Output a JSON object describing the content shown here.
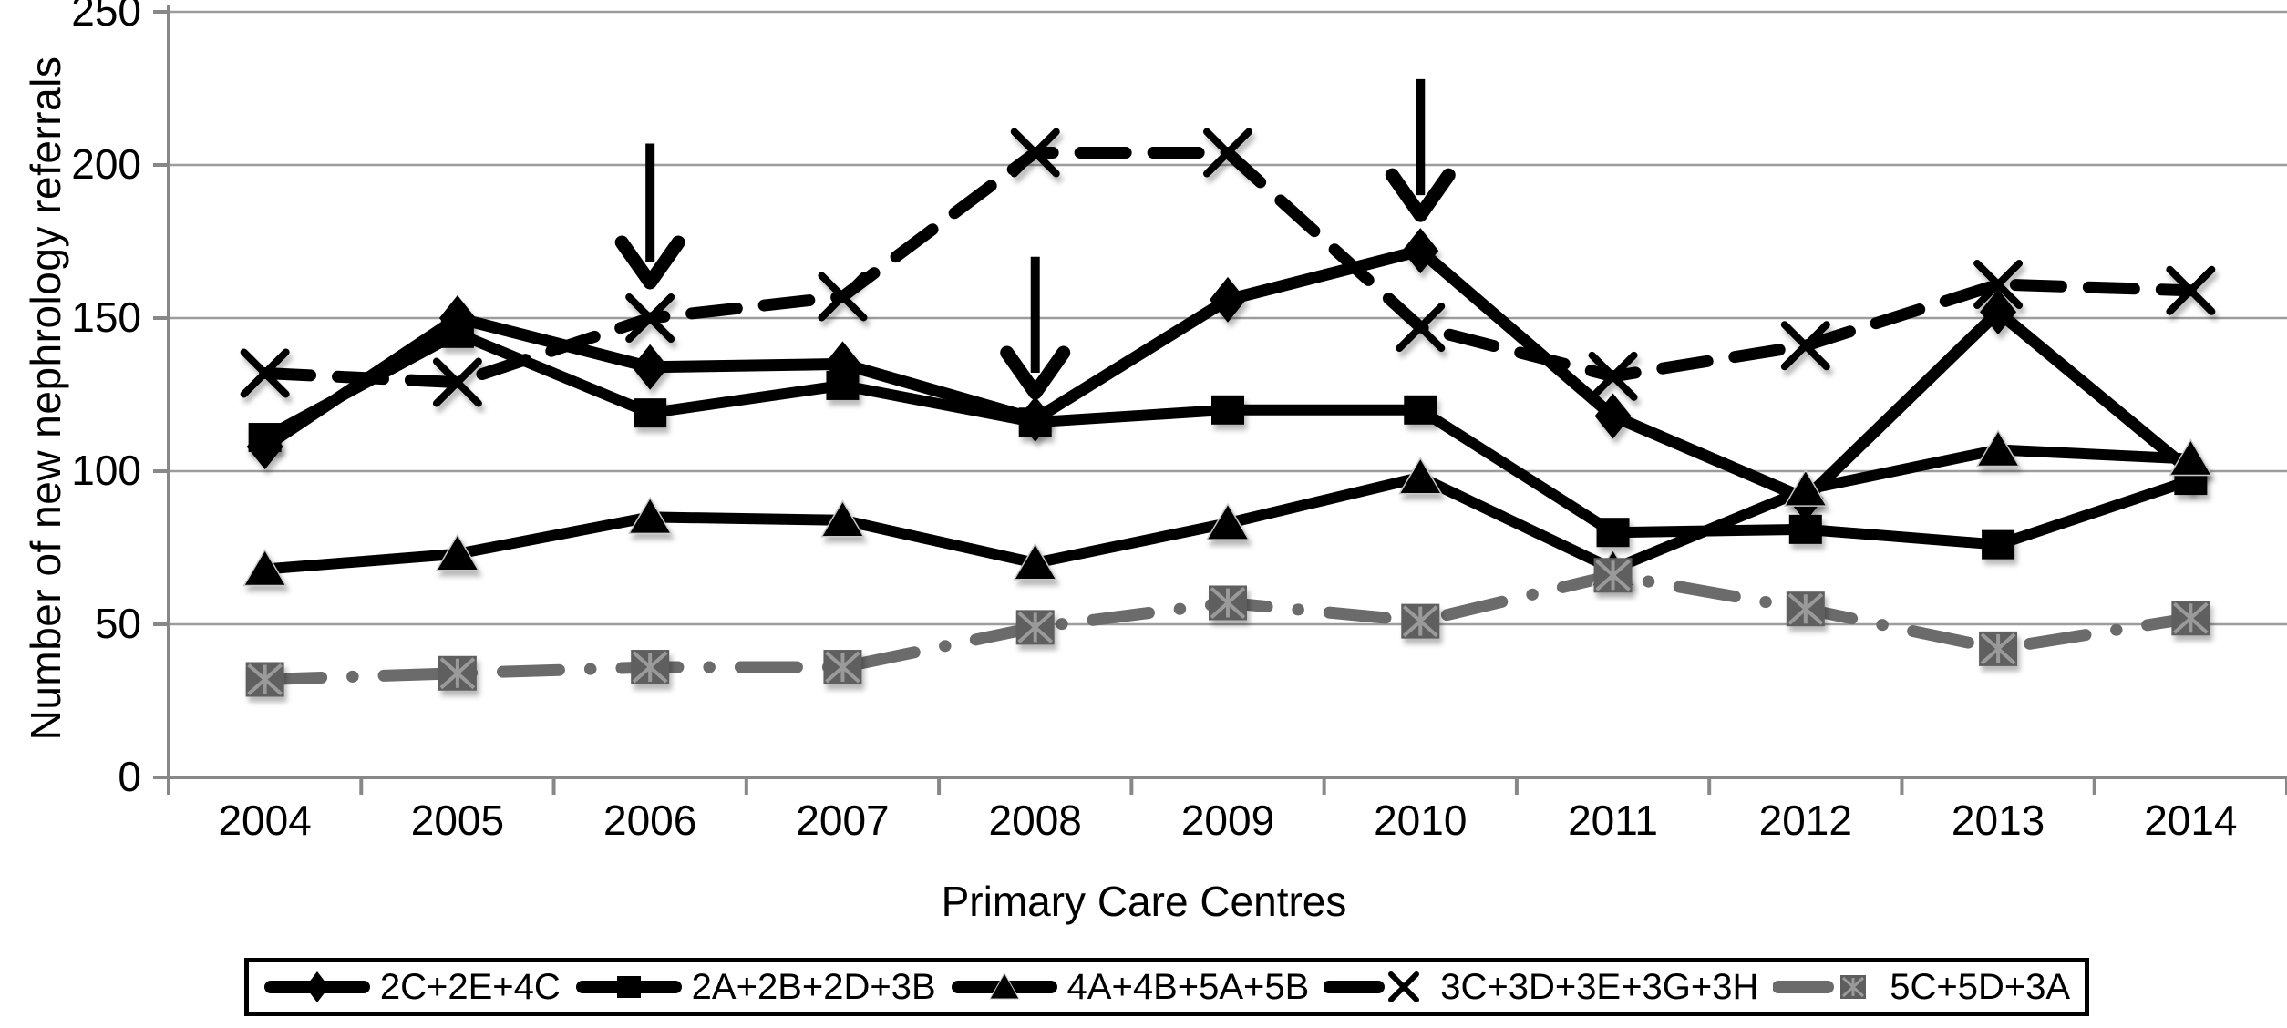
{
  "chart_data": {
    "type": "line",
    "title": "",
    "xlabel": "Primary Care Centres",
    "ylabel": "Number of new nephrology referrals",
    "categories": [
      "2004",
      "2005",
      "2006",
      "2007",
      "2008",
      "2009",
      "2010",
      "2011",
      "2012",
      "2013",
      "2014"
    ],
    "ylim": [
      0,
      250
    ],
    "y_ticks": [
      0,
      50,
      100,
      150,
      200,
      250
    ],
    "grid": true,
    "legend_position": "bottom",
    "series": [
      {
        "name": "2C+2E+4C",
        "marker": "diamond",
        "line": "solid",
        "color": "#000000",
        "values": [
          108,
          150,
          134,
          135,
          117,
          156,
          172,
          118,
          91,
          152,
          100
        ]
      },
      {
        "name": "2A+2B+2D+3B",
        "marker": "square",
        "line": "solid",
        "color": "#000000",
        "values": [
          111,
          145,
          119,
          128,
          116,
          120,
          120,
          80,
          81,
          76,
          97
        ]
      },
      {
        "name": "4A+4B+5A+5B",
        "marker": "triangle",
        "line": "solid",
        "color": "#000000",
        "values": [
          68,
          73,
          85,
          84,
          70,
          83,
          98,
          68,
          94,
          107,
          104
        ]
      },
      {
        "name": "3C+3D+3E+3G+3H",
        "marker": "x",
        "line": "dashed",
        "color": "#000000",
        "values": [
          132,
          129,
          150,
          157,
          204,
          204,
          147,
          131,
          141,
          161,
          159
        ]
      },
      {
        "name": "5C+5D+3A",
        "marker": "boxed-x",
        "line": "dash-dot",
        "color": "#6b6b6b",
        "values": [
          32,
          34,
          36,
          36,
          49,
          57,
          51,
          66,
          55,
          42,
          52
        ]
      }
    ],
    "annotations": {
      "arrows": [
        {
          "category": "2006",
          "from_value": 207,
          "to_value": 161
        },
        {
          "category": "2008",
          "from_value": 170,
          "to_value": 125
        },
        {
          "category": "2010",
          "from_value": 228,
          "to_value": 183
        }
      ]
    },
    "colors": {
      "grid": "#9c9c9c",
      "axis": "#888888",
      "black_series": "#000000",
      "gray_series": "#6b6b6b",
      "gray_marker_fill": "#5e5e5e",
      "gray_marker_lines": "#9a9a9a"
    }
  }
}
